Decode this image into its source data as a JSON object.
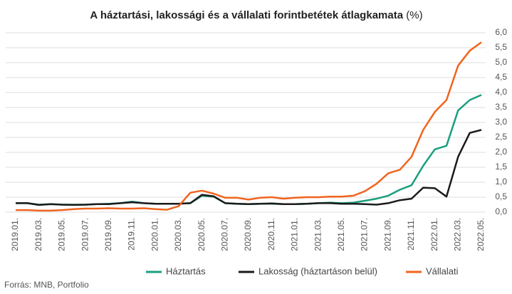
{
  "chart_data": {
    "type": "line",
    "title": "A háztartási, lakossági és a vállalati forintbetétek átlagkamata",
    "unit": "(%)",
    "source": "Forrás: MNB, Portfolio",
    "categories": [
      "2019.01.",
      null,
      "2019.03.",
      null,
      "2019.05.",
      null,
      "2019.07.",
      null,
      "2019.09.",
      null,
      "2019.11.",
      null,
      "2020.01.",
      null,
      "2020.03.",
      null,
      "2020.05.",
      null,
      "2020.07.",
      null,
      "2020.09.",
      null,
      "2020.11.",
      null,
      "2021.01.",
      null,
      "2021.03.",
      null,
      "2021.05.",
      null,
      "2021.07.",
      null,
      "2021.09.",
      null,
      "2021.11.",
      null,
      "2022.01.",
      null,
      "2022.03.",
      null,
      "2022.05."
    ],
    "series": [
      {
        "name": "Háztartás",
        "color": "#1a9e7e",
        "values": [
          0.3,
          0.3,
          0.25,
          0.27,
          0.25,
          0.25,
          0.25,
          0.27,
          0.28,
          0.3,
          0.35,
          0.3,
          0.28,
          0.28,
          0.28,
          0.3,
          0.55,
          0.52,
          0.3,
          0.28,
          0.27,
          0.28,
          0.28,
          0.27,
          0.27,
          0.28,
          0.3,
          0.32,
          0.3,
          0.32,
          0.38,
          0.45,
          0.55,
          0.75,
          0.9,
          1.55,
          2.1,
          2.22,
          3.4,
          3.75,
          3.92
        ]
      },
      {
        "name": "Lakosság (háztartáson belül)",
        "color": "#1b1b1b",
        "values": [
          0.3,
          0.3,
          0.24,
          0.27,
          0.25,
          0.24,
          0.25,
          0.27,
          0.27,
          0.3,
          0.33,
          0.3,
          0.28,
          0.28,
          0.28,
          0.3,
          0.58,
          0.53,
          0.3,
          0.28,
          0.27,
          0.28,
          0.29,
          0.27,
          0.27,
          0.28,
          0.3,
          0.3,
          0.28,
          0.28,
          0.27,
          0.25,
          0.3,
          0.4,
          0.45,
          0.82,
          0.8,
          0.52,
          1.85,
          2.65,
          2.75
        ]
      },
      {
        "name": "Vállalati",
        "color": "#f0641e",
        "values": [
          0.07,
          0.07,
          0.05,
          0.05,
          0.07,
          0.1,
          0.12,
          0.12,
          0.13,
          0.12,
          0.12,
          0.13,
          0.1,
          0.08,
          0.2,
          0.65,
          0.72,
          0.62,
          0.48,
          0.48,
          0.42,
          0.48,
          0.5,
          0.45,
          0.48,
          0.5,
          0.5,
          0.52,
          0.52,
          0.55,
          0.7,
          0.95,
          1.3,
          1.42,
          1.85,
          2.75,
          3.35,
          3.75,
          4.9,
          5.4,
          5.68
        ]
      }
    ],
    "ylim": [
      0,
      6
    ],
    "yticks": [
      {
        "value": 0,
        "label": "0,0"
      },
      {
        "value": 0.5,
        "label": "0,5"
      },
      {
        "value": 1,
        "label": "1,0"
      },
      {
        "value": 1.5,
        "label": "1,5"
      },
      {
        "value": 2,
        "label": "2,0"
      },
      {
        "value": 2.5,
        "label": "2,5"
      },
      {
        "value": 3,
        "label": "3,0"
      },
      {
        "value": 3.5,
        "label": "3,5"
      },
      {
        "value": 4,
        "label": "4,0"
      },
      {
        "value": 4.5,
        "label": "4,5"
      },
      {
        "value": 5,
        "label": "5,0"
      },
      {
        "value": 5.5,
        "label": "5,5"
      },
      {
        "value": 6,
        "label": "6,0"
      }
    ],
    "grid": true,
    "legend": "bottom"
  }
}
